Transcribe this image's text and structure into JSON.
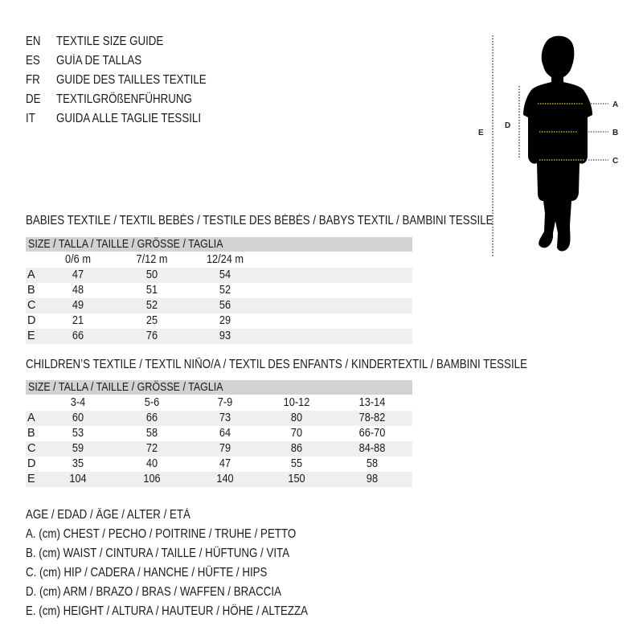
{
  "languages": [
    {
      "code": "EN",
      "title": "TEXTILE SIZE GUIDE"
    },
    {
      "code": "ES",
      "title": "GUÍA DE TALLAS"
    },
    {
      "code": "FR",
      "title": "GUIDE DES TAILLES TEXTILE"
    },
    {
      "code": "DE",
      "title": "TEXTILGRÖßENFÜHRUNG"
    },
    {
      "code": "IT",
      "title": "GUIDA ALLE TAGLIE TESSILI"
    }
  ],
  "babies": {
    "title": "BABIES TEXTILE / TEXTIL BEBÉS / TESTILE DES BÉBÉS / BABYS TEXTIL / BAMBINI TESSILE",
    "size_header": "SIZE / TALLA / TAILLE / GRÖSSE / TAGLIA",
    "columns": [
      "0/6 m",
      "7/12 m",
      "12/24 m"
    ],
    "rows": [
      {
        "label": "A",
        "values": [
          "47",
          "50",
          "54"
        ]
      },
      {
        "label": "B",
        "values": [
          "48",
          "51",
          "52"
        ]
      },
      {
        "label": "C",
        "values": [
          "49",
          "52",
          "56"
        ]
      },
      {
        "label": "D",
        "values": [
          "21",
          "25",
          "29"
        ]
      },
      {
        "label": "E",
        "values": [
          "66",
          "76",
          "93"
        ]
      }
    ]
  },
  "children": {
    "title": "CHILDREN’S TEXTILE / TEXTIL NIÑO/A / TEXTIL DES ENFANTS / KINDERTEXTIL / BAMBINI TESSILE",
    "size_header": "SIZE / TALLA / TAILLE / GRÖSSE / TAGLIA",
    "columns": [
      "3-4",
      "5-6",
      "7-9",
      "10-12",
      "13-14"
    ],
    "rows": [
      {
        "label": "A",
        "values": [
          "60",
          "66",
          "73",
          "80",
          "78-82"
        ]
      },
      {
        "label": "B",
        "values": [
          "53",
          "58",
          "64",
          "70",
          "66-70"
        ]
      },
      {
        "label": "C",
        "values": [
          "59",
          "72",
          "79",
          "86",
          "84-88"
        ]
      },
      {
        "label": "D",
        "values": [
          "35",
          "40",
          "47",
          "55",
          "58"
        ]
      },
      {
        "label": "E",
        "values": [
          "104",
          "106",
          "140",
          "150",
          "98"
        ]
      }
    ]
  },
  "legend": [
    "AGE / EDAD / ÂGE / ALTER / ETÀ",
    "A. (cm) CHEST / PECHO / POITRINE / TRUHE / PETTO",
    "B. (cm) WAIST / CINTURA / TAILLE / HÜFTUNG / VITA",
    "C. (cm) HIP / CADERA / HANCHE / HÜFTE / HIPS",
    "D. (cm) ARM / BRAZO / BRAS / WAFFEN / BRACCIA",
    "E. (cm) HEIGHT / ALTURA / HAUTEUR / HÖHE / ALTEZZA"
  ],
  "figure": {
    "labels": {
      "a": "A",
      "b": "B",
      "c": "C",
      "d": "D",
      "e": "E"
    },
    "measure_line_color": "#e8d200",
    "silhouette_color": "#000000"
  }
}
